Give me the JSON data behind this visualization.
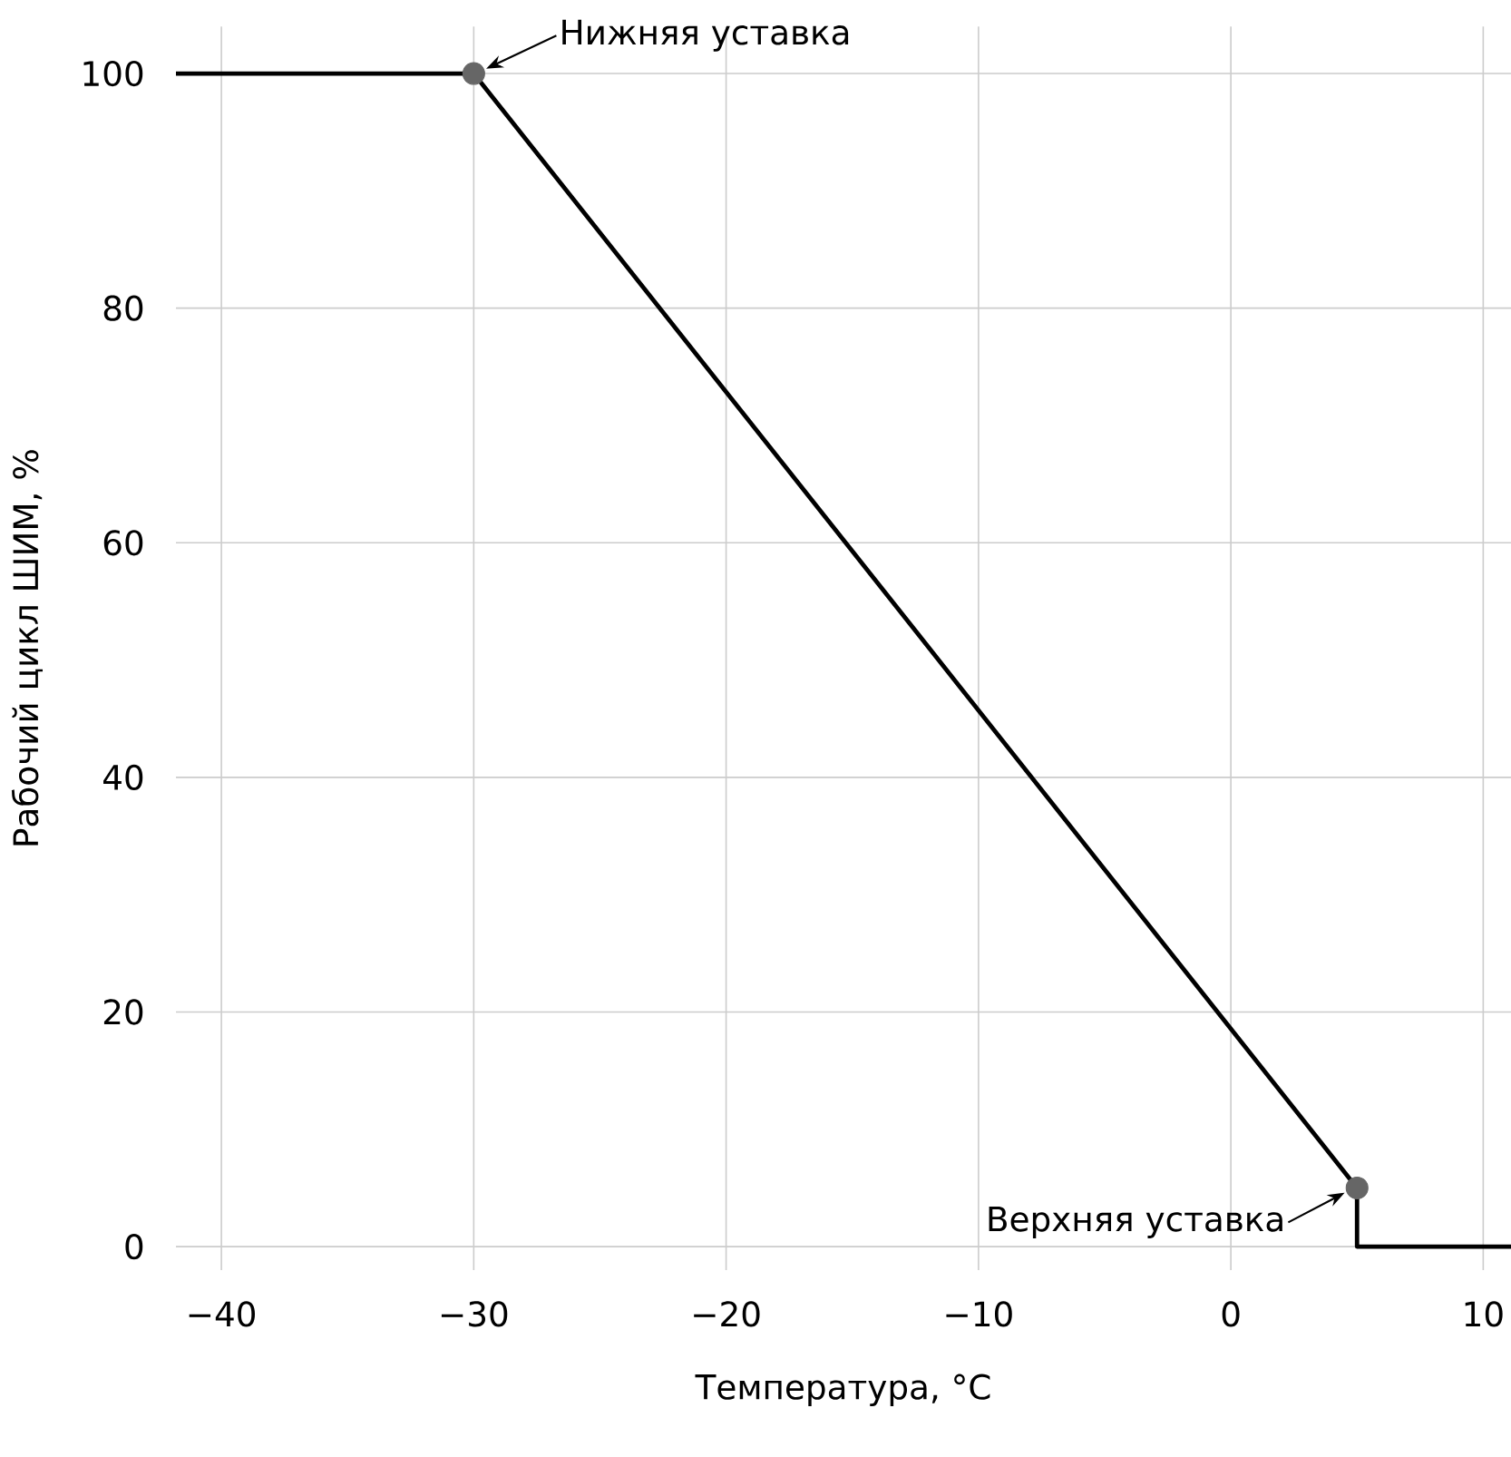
{
  "chart_data": {
    "type": "line",
    "xlabel": "Температура, °C",
    "ylabel": "Рабочий цикл ШИМ, %",
    "xlim": [
      -41.8,
      11.1
    ],
    "ylim": [
      -2,
      104
    ],
    "xticks": [
      {
        "value": -40,
        "label": "−40"
      },
      {
        "value": -30,
        "label": "−30"
      },
      {
        "value": -20,
        "label": "−20"
      },
      {
        "value": -10,
        "label": "−10"
      },
      0,
      10
    ],
    "yticks": [
      0,
      20,
      40,
      60,
      80,
      100
    ],
    "grid": true,
    "series": [
      {
        "color": "#000000",
        "marker": "none",
        "x": [
          -41.8,
          -30,
          5,
          5,
          11.1
        ],
        "values": [
          100,
          100,
          5,
          0,
          0
        ]
      },
      {
        "type": "scatter",
        "color": "#666666",
        "marker": "circle",
        "x": [
          -30,
          5
        ],
        "values": [
          100,
          5
        ]
      }
    ],
    "annotations": [
      {
        "text": "Нижняя уставка",
        "x": -30,
        "y": 100
      },
      {
        "text": "Верхняя уставка",
        "x": 5,
        "y": 5
      }
    ]
  }
}
